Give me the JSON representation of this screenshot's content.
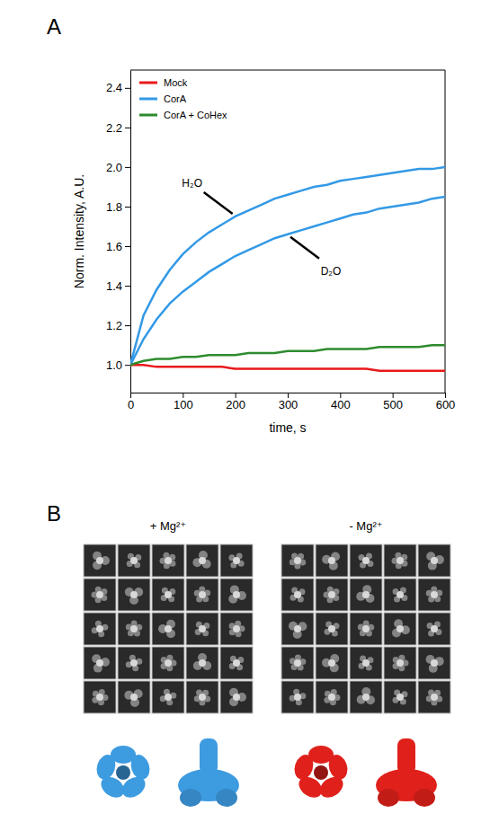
{
  "chart_data": {
    "type": "line",
    "panel_label": "A",
    "x_label": "time, s",
    "y_label": "Norm. Intensity, A.U.",
    "x": [
      0,
      25,
      50,
      75,
      100,
      125,
      150,
      175,
      200,
      225,
      250,
      275,
      300,
      325,
      350,
      375,
      400,
      425,
      450,
      475,
      500,
      525,
      550,
      575,
      600
    ],
    "series": [
      {
        "name": "Mock",
        "color": "#e8191b",
        "values": [
          1.0,
          1.0,
          0.99,
          0.99,
          0.99,
          0.99,
          0.99,
          0.99,
          0.98,
          0.98,
          0.98,
          0.98,
          0.98,
          0.98,
          0.98,
          0.98,
          0.98,
          0.98,
          0.98,
          0.97,
          0.97,
          0.97,
          0.97,
          0.97,
          0.97
        ]
      },
      {
        "name": "CorA",
        "color": "#3399e6",
        "annotation": "H₂O",
        "values": [
          1.0,
          1.25,
          1.38,
          1.48,
          1.56,
          1.62,
          1.67,
          1.71,
          1.75,
          1.78,
          1.81,
          1.84,
          1.86,
          1.88,
          1.9,
          1.91,
          1.93,
          1.94,
          1.95,
          1.96,
          1.97,
          1.98,
          1.99,
          1.99,
          2.0
        ]
      },
      {
        "name": "CorA",
        "color": "#3399e6",
        "annotation": "D₂O",
        "values": [
          1.0,
          1.13,
          1.23,
          1.31,
          1.37,
          1.42,
          1.47,
          1.51,
          1.55,
          1.58,
          1.61,
          1.64,
          1.66,
          1.68,
          1.7,
          1.72,
          1.74,
          1.76,
          1.77,
          1.79,
          1.8,
          1.81,
          1.82,
          1.84,
          1.85
        ]
      },
      {
        "name": "CorA + CoHex",
        "color": "#2e8b2e",
        "values": [
          1.0,
          1.02,
          1.03,
          1.03,
          1.04,
          1.04,
          1.05,
          1.05,
          1.05,
          1.06,
          1.06,
          1.06,
          1.07,
          1.07,
          1.07,
          1.08,
          1.08,
          1.08,
          1.08,
          1.09,
          1.09,
          1.09,
          1.09,
          1.1,
          1.1
        ]
      }
    ],
    "xlim": [
      0,
      600
    ],
    "xticks": [
      0,
      100,
      200,
      300,
      400,
      500,
      600
    ],
    "ylim": [
      0.86,
      2.49
    ],
    "yticks": [
      {
        "value": 1,
        "label": "1.0"
      },
      {
        "value": 1.2,
        "label": "1.2"
      },
      {
        "value": 1.4,
        "label": "1.4"
      },
      {
        "value": 1.6,
        "label": "1.6"
      },
      {
        "value": 1.8,
        "label": "1.8"
      },
      {
        "value": 2,
        "label": "2.0"
      },
      {
        "value": 2.2,
        "label": "2.2"
      },
      {
        "value": 2.4,
        "label": "2.4"
      }
    ],
    "legend": "top-left",
    "grid": false
  },
  "panel_b": {
    "letter": "B",
    "groups": [
      {
        "label": "+ Mg²⁺"
      },
      {
        "label": "- Mg²⁺"
      }
    ]
  }
}
